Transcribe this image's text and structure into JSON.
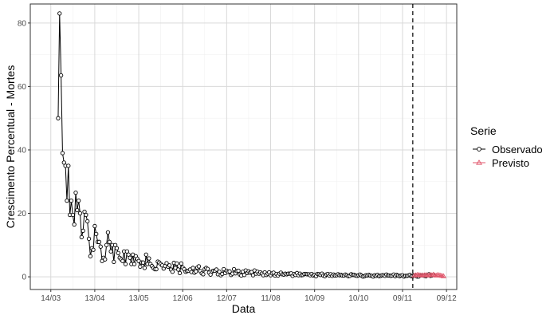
{
  "chart_data": {
    "type": "line",
    "xlabel": "Data",
    "ylabel": "Crescimento Percentual - Mortes",
    "legend_title": "Serie",
    "legend_position": "right",
    "grid": true,
    "ylim": [
      -4,
      86
    ],
    "yticks": [
      0,
      20,
      40,
      60,
      80
    ],
    "xticks": [
      {
        "label": "14/03",
        "day": 0
      },
      {
        "label": "13/04",
        "day": 30
      },
      {
        "label": "13/05",
        "day": 60
      },
      {
        "label": "12/06",
        "day": 90
      },
      {
        "label": "12/07",
        "day": 120
      },
      {
        "label": "11/08",
        "day": 150
      },
      {
        "label": "10/09",
        "day": 180
      },
      {
        "label": "10/10",
        "day": 210
      },
      {
        "label": "09/11",
        "day": 240
      },
      {
        "label": "09/12",
        "day": 270
      }
    ],
    "xlim": [
      -14,
      277
    ],
    "forecast_start_day": 247,
    "series": [
      {
        "name": "Observado",
        "color": "#000000",
        "marker": "circle",
        "start_day": 5,
        "values": [
          50,
          83,
          63.5,
          39,
          36,
          35,
          24,
          35,
          19.5,
          24,
          19.5,
          16.5,
          26.5,
          21,
          24,
          20,
          12.5,
          14.5,
          20.5,
          19.5,
          17.5,
          12,
          6.5,
          9,
          8.5,
          16,
          13.5,
          11,
          11,
          9.5,
          5,
          6,
          5.5,
          10,
          14,
          11,
          8,
          10,
          4.7,
          10,
          9,
          7.5,
          6,
          5.5,
          5,
          8,
          4,
          8,
          7,
          6,
          4,
          7,
          4,
          6.5,
          5.7,
          5,
          3.2,
          4.5,
          4.5,
          2.8,
          7,
          4,
          5.8,
          4,
          3.4,
          2.8,
          2.4,
          2.4,
          4.8,
          4.5,
          4,
          3.6,
          2.6,
          3.4,
          4.3,
          3.2,
          3.6,
          2.3,
          1.6,
          4.4,
          2.8,
          4.2,
          2.3,
          1.2,
          4.2,
          2.9,
          2.4,
          1.6,
          1.8,
          1.9,
          2.3,
          1.5,
          2.8,
          1.3,
          1.7,
          2.9,
          3.3,
          1.8,
          1.1,
          0.8,
          2.4,
          2.8,
          2.5,
          1.3,
          0.7,
          1.7,
          1.9,
          1.9,
          2.3,
          0.8,
          1.6,
          0.5,
          0.9,
          2.4,
          1.2,
          1.9,
          1.5,
          1.7,
          0.6,
          1.0,
          2.4,
          1.1,
          1.8,
          1.9,
          0.7,
          0.4,
          1.6,
          0.6,
          2.0,
          1.2,
          1.7,
          1.3,
          1.5,
          0.5,
          2.0,
          1.0,
          1.6,
          1.0,
          1.4,
          1.0,
          0.5,
          1.4,
          0.6,
          1.0,
          1.4,
          0.5,
          1.1,
          1.3,
          0.4,
          0.9,
          0.4,
          1.0,
          1.3,
          0.8,
          0.7,
          1.0,
          0.8,
          1.0,
          1.0,
          1.1,
          0.3,
          0.9,
          0.6,
          1.2,
          0.5,
          1.0,
          0.5,
          0.6,
          0.9,
          0.9,
          0.8,
          0.8,
          0.5,
          0.9,
          0.4,
          0.6,
          0.2,
          0.9,
          0.8,
          0.6,
          1.0,
          0.4,
          0.2,
          0.7,
          0.9,
          0.4,
          0.8,
          0.3,
          0.7,
          0.4,
          0.5,
          0.8,
          0.5,
          0.6,
          0.4,
          0.4,
          0.7,
          0.5,
          0.2,
          0.3,
          0.8,
          0.6,
          0.6,
          0.4,
          0.3,
          0.5,
          0.7,
          0.4,
          0.1,
          0.2,
          0.5,
          0.4,
          0.6,
          0.4,
          0.3,
          0.1,
          0.5,
          0.3,
          0.6,
          0.2,
          0.3,
          0.5,
          0.5,
          0.3,
          0.7,
          0.4,
          0.4,
          0.3,
          0.4,
          0.7,
          0.2,
          0.6,
          0.4,
          0.2,
          0.4,
          0.5,
          0.1,
          0.3,
          0.3,
          0.4,
          0.6,
          0.2,
          0.2,
          0.5,
          0.3,
          0.1,
          0.1,
          0.4,
          0.5,
          0.4,
          0.3,
          0.2,
          0.5,
          0.8,
          0.3,
          0.4,
          0.6
        ]
      },
      {
        "name": "Previsto",
        "color": "#e0566b",
        "marker": "triangle",
        "start_day": 248,
        "values": [
          0.4,
          0.5,
          0.6,
          0.6,
          0.5,
          0.4,
          0.5,
          0.5,
          0.6,
          0.4,
          0.5,
          0.6,
          0.5,
          0.7,
          0.5,
          0.4,
          0.6,
          0.5,
          0.4,
          0.3,
          0.2
        ]
      }
    ]
  }
}
